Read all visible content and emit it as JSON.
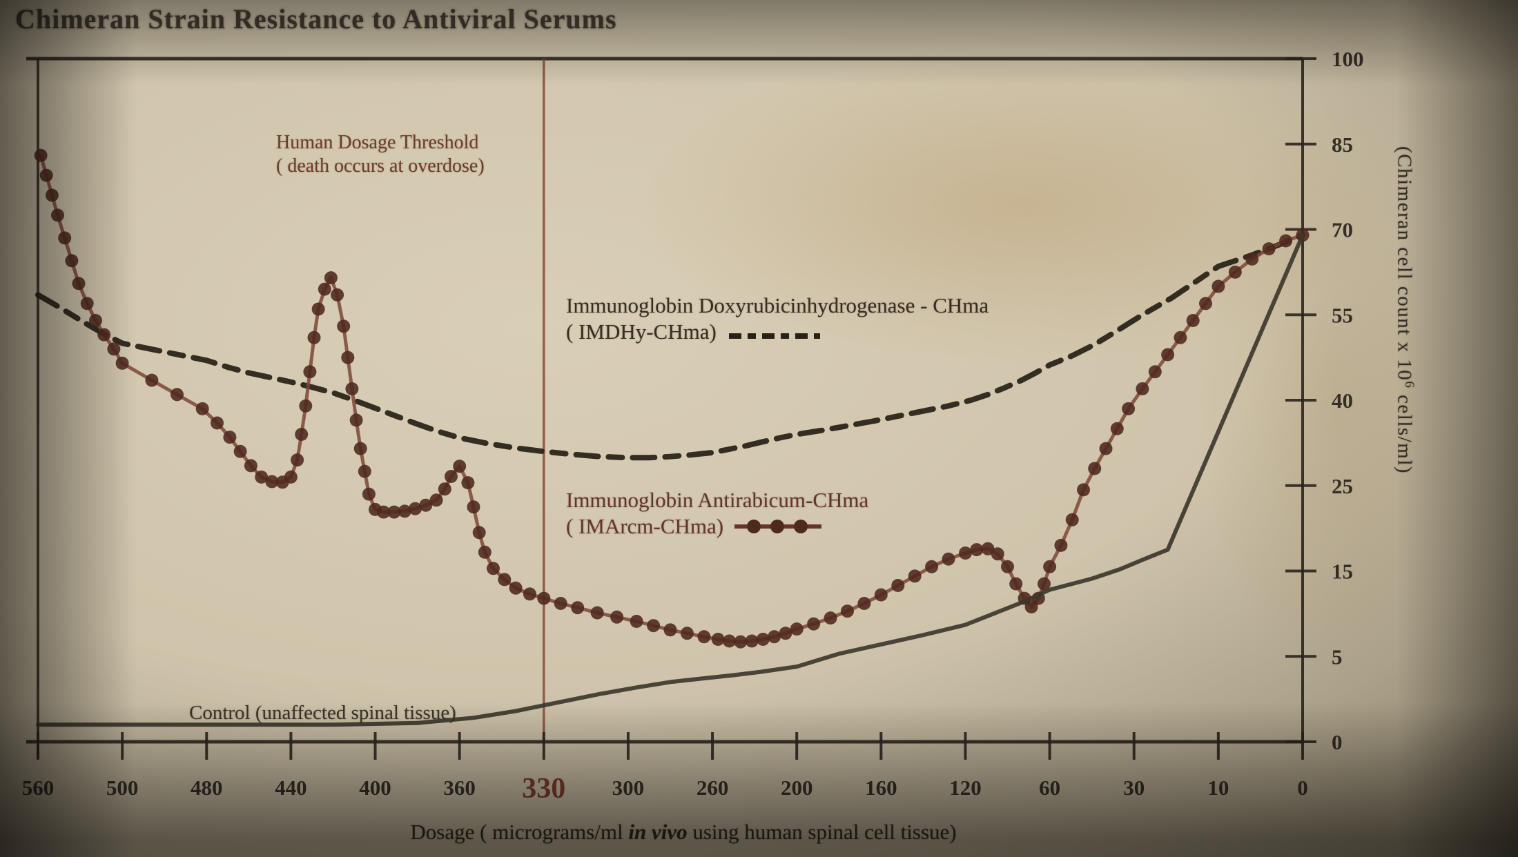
{
  "title": "Chimeran Strain Resistance to Antiviral Serums",
  "colors": {
    "paper": "#cfc4ab",
    "ink": "#2c2620",
    "red_accent": "#7c3526",
    "imarcm_series": "#5a2f23",
    "imdhy_series": "#262016",
    "control_series": "#3d382c"
  },
  "annotations": {
    "threshold_line1": "Human Dosage Threshold",
    "threshold_line2": "( death occurs at overdose)",
    "imdhy_line1": "Immunoglobin Doxyrubicinhydrogenase - CHma",
    "imdhy_line2": "( IMDHy-CHma)",
    "imarcm_line1": "Immunoglobin Antirabicum-CHma",
    "imarcm_line2": "( IMArcm-CHma)",
    "control_label": "Control (unaffected spinal tissue)"
  },
  "x_axis_title": {
    "prefix": "Dosage ( micrograms/ml ",
    "italic": "in vivo",
    "suffix": " using human spinal cell tissue)"
  },
  "y_axis_title": {
    "prefix": "(Chimeran cell count  x 10",
    "sup": "6",
    "suffix": " cells/ml)"
  },
  "chart_data": {
    "type": "line",
    "title": "Chimeran Strain Resistance to Antiviral Serums",
    "xlabel": "Dosage ( micrograms/ml in vivo using human spinal cell tissue)",
    "ylabel": "(Chimeran cell count x 10^6 cells/ml)",
    "x_axis_reversed": true,
    "x_ticks": [
      560,
      500,
      480,
      440,
      400,
      360,
      330,
      300,
      260,
      200,
      160,
      120,
      60,
      30,
      10,
      0
    ],
    "y_ticks": [
      0,
      5,
      15,
      25,
      40,
      55,
      70,
      85,
      100
    ],
    "grid": false,
    "legend_position": "inline-annotations",
    "threshold": {
      "x": 330,
      "label": "Human Dosage Threshold ( death occurs at overdose)",
      "color": "#8a4a36"
    },
    "series": [
      {
        "name": "Immunoglobin Doxyrubicinhydrogenase - CHma ( IMDHy-CHma)",
        "short_name": "IMDHy-CHma",
        "style": "dashed",
        "color": "#262016",
        "points": [
          [
            560,
            58.5
          ],
          [
            548,
            56.8
          ],
          [
            536,
            55
          ],
          [
            524,
            53.2
          ],
          [
            512,
            51.5
          ],
          [
            500,
            50
          ],
          [
            490,
            48.5
          ],
          [
            480,
            47
          ],
          [
            470,
            45.8
          ],
          [
            460,
            44.8
          ],
          [
            450,
            44
          ],
          [
            440,
            43.2
          ],
          [
            430,
            42.3
          ],
          [
            420,
            41.3
          ],
          [
            410,
            40
          ],
          [
            400,
            38.6
          ],
          [
            390,
            37.2
          ],
          [
            380,
            35.8
          ],
          [
            370,
            34.5
          ],
          [
            360,
            33.4
          ],
          [
            350,
            32.4
          ],
          [
            340,
            31.6
          ],
          [
            330,
            31
          ],
          [
            320,
            30.5
          ],
          [
            310,
            30.1
          ],
          [
            300,
            29.9
          ],
          [
            290,
            29.9
          ],
          [
            280,
            30.1
          ],
          [
            270,
            30.4
          ],
          [
            260,
            30.8
          ],
          [
            248,
            31.4
          ],
          [
            236,
            32
          ],
          [
            224,
            32.7
          ],
          [
            212,
            33.4
          ],
          [
            200,
            34
          ],
          [
            188,
            34.7
          ],
          [
            176,
            35.5
          ],
          [
            164,
            36.3
          ],
          [
            152,
            37.2
          ],
          [
            140,
            38.1
          ],
          [
            128,
            39
          ],
          [
            116,
            40
          ],
          [
            104,
            41
          ],
          [
            92,
            42.2
          ],
          [
            80,
            43.5
          ],
          [
            70,
            44.8
          ],
          [
            60,
            46.2
          ],
          [
            52,
            47.8
          ],
          [
            44,
            49.8
          ],
          [
            36,
            52.2
          ],
          [
            28,
            55
          ],
          [
            21,
            58
          ],
          [
            15,
            61
          ],
          [
            10,
            63.5
          ],
          [
            6,
            65.5
          ],
          [
            3,
            67.2
          ],
          [
            0,
            69
          ]
        ]
      },
      {
        "name": "Immunoglobin Antirabicum-CHma ( IMArcm-CHma)",
        "short_name": "IMArcm-CHma",
        "style": "line-with-dots",
        "color": "#5a2f23",
        "points": [
          [
            558,
            83
          ],
          [
            554,
            79.5
          ],
          [
            550,
            76
          ],
          [
            546,
            72.5
          ],
          [
            541,
            68.5
          ],
          [
            536,
            64.5
          ],
          [
            531,
            60.5
          ],
          [
            525,
            57
          ],
          [
            519,
            54
          ],
          [
            513,
            51.5
          ],
          [
            506,
            49
          ],
          [
            500,
            46.5
          ],
          [
            493,
            43.5
          ],
          [
            487,
            41
          ],
          [
            481,
            38.5
          ],
          [
            475,
            36
          ],
          [
            469,
            33.5
          ],
          [
            464,
            31
          ],
          [
            459,
            28.5
          ],
          [
            454,
            26.5
          ],
          [
            449,
            25.7
          ],
          [
            444,
            25.6
          ],
          [
            440,
            26.5
          ],
          [
            437,
            29.5
          ],
          [
            435,
            34
          ],
          [
            433,
            39
          ],
          [
            431,
            45
          ],
          [
            429,
            51
          ],
          [
            427,
            56
          ],
          [
            424,
            59.5
          ],
          [
            421,
            61.5
          ],
          [
            418,
            58.5
          ],
          [
            415,
            53
          ],
          [
            413,
            47.5
          ],
          [
            411,
            42
          ],
          [
            409,
            36.5
          ],
          [
            407,
            31.5
          ],
          [
            405,
            27.5
          ],
          [
            403,
            24
          ],
          [
            400,
            22.2
          ],
          [
            396,
            21.9
          ],
          [
            391,
            21.9
          ],
          [
            386,
            22
          ],
          [
            381,
            22.3
          ],
          [
            376,
            22.7
          ],
          [
            371,
            23.3
          ],
          [
            367,
            24.6
          ],
          [
            364,
            26.6
          ],
          [
            360,
            28.4
          ],
          [
            357,
            25.5
          ],
          [
            355,
            22.5
          ],
          [
            353,
            19.5
          ],
          [
            351,
            17.2
          ],
          [
            348,
            15.3
          ],
          [
            344,
            14
          ],
          [
            340,
            13
          ],
          [
            335,
            12.3
          ],
          [
            330,
            11.8
          ],
          [
            324,
            11.2
          ],
          [
            318,
            10.7
          ],
          [
            311,
            10.1
          ],
          [
            304,
            9.6
          ],
          [
            296,
            9.1
          ],
          [
            288,
            8.6
          ],
          [
            280,
            8.1
          ],
          [
            272,
            7.7
          ],
          [
            264,
            7.3
          ],
          [
            256,
            7
          ],
          [
            248,
            6.8
          ],
          [
            240,
            6.7
          ],
          [
            232,
            6.8
          ],
          [
            224,
            7
          ],
          [
            216,
            7.3
          ],
          [
            208,
            7.7
          ],
          [
            200,
            8.2
          ],
          [
            192,
            8.8
          ],
          [
            184,
            9.5
          ],
          [
            176,
            10.3
          ],
          [
            168,
            11.2
          ],
          [
            160,
            12.2
          ],
          [
            152,
            13.3
          ],
          [
            144,
            14.4
          ],
          [
            136,
            15.5
          ],
          [
            128,
            16.4
          ],
          [
            120,
            17.1
          ],
          [
            112,
            17.5
          ],
          [
            104,
            17.6
          ],
          [
            97,
            17
          ],
          [
            90,
            15.5
          ],
          [
            84,
            13.5
          ],
          [
            78,
            11.8
          ],
          [
            73,
            10.8
          ],
          [
            68,
            11.8
          ],
          [
            64,
            13.5
          ],
          [
            60,
            15.5
          ],
          [
            56,
            18
          ],
          [
            52,
            21
          ],
          [
            48,
            24.5
          ],
          [
            44,
            28
          ],
          [
            40,
            31.5
          ],
          [
            36,
            35
          ],
          [
            32,
            38.5
          ],
          [
            28,
            42
          ],
          [
            25,
            45
          ],
          [
            22,
            48
          ],
          [
            19,
            51
          ],
          [
            16,
            54
          ],
          [
            13,
            57
          ],
          [
            10,
            60
          ],
          [
            8,
            62.5
          ],
          [
            6,
            64.8
          ],
          [
            4,
            66.6
          ],
          [
            2,
            68
          ],
          [
            0,
            69
          ]
        ]
      },
      {
        "name": "Control (unaffected spinal tissue)",
        "short_name": "Control",
        "style": "solid",
        "color": "#3d382c",
        "points": [
          [
            560,
            1
          ],
          [
            480,
            1
          ],
          [
            420,
            1
          ],
          [
            380,
            1.1
          ],
          [
            355,
            1.4
          ],
          [
            340,
            1.8
          ],
          [
            325,
            2.3
          ],
          [
            310,
            2.8
          ],
          [
            295,
            3.2
          ],
          [
            280,
            3.5
          ],
          [
            265,
            3.7
          ],
          [
            245,
            3.9
          ],
          [
            225,
            4.1
          ],
          [
            200,
            4.4
          ],
          [
            180,
            5.3
          ],
          [
            160,
            6.4
          ],
          [
            140,
            7.5
          ],
          [
            120,
            8.7
          ],
          [
            100,
            10
          ],
          [
            80,
            11.3
          ],
          [
            60,
            12.8
          ],
          [
            45,
            14.1
          ],
          [
            35,
            15.2
          ],
          [
            28,
            16.3
          ],
          [
            22,
            17.5
          ],
          [
            0,
            69
          ]
        ]
      }
    ]
  }
}
